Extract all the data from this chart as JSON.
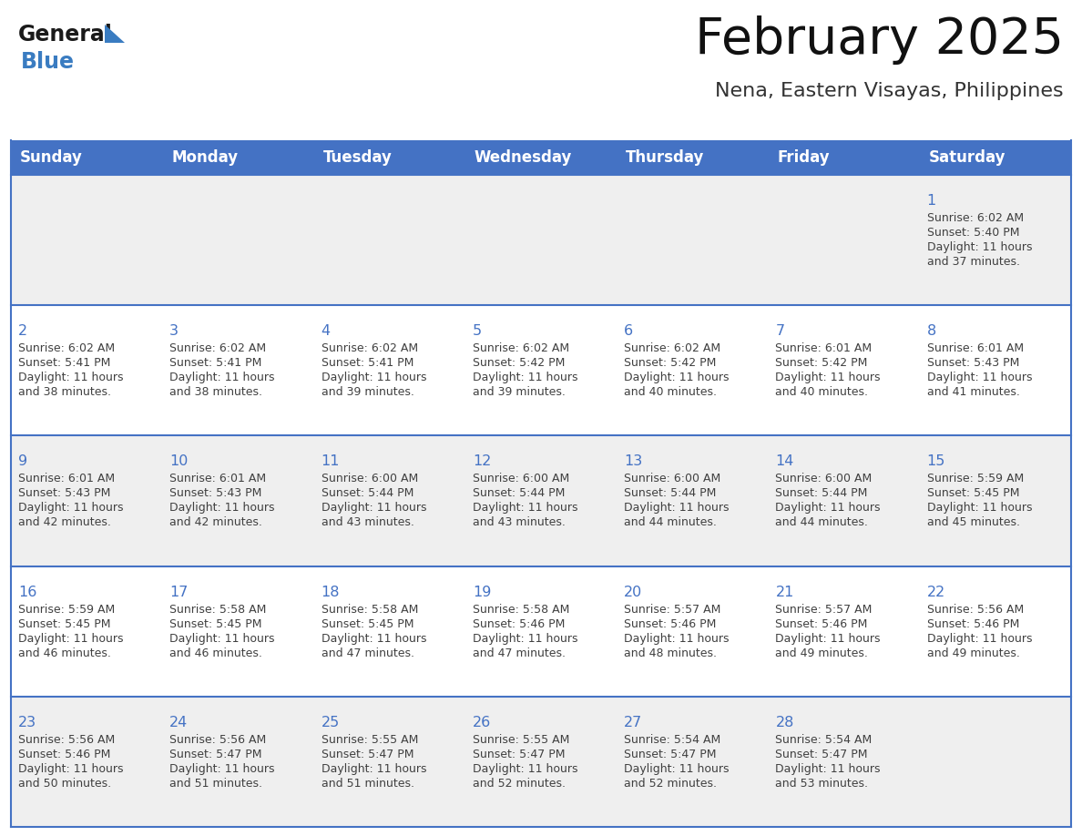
{
  "title": "February 2025",
  "subtitle": "Nena, Eastern Visayas, Philippines",
  "header_color": "#4472C4",
  "header_text_color": "#FFFFFF",
  "weekdays": [
    "Sunday",
    "Monday",
    "Tuesday",
    "Wednesday",
    "Thursday",
    "Friday",
    "Saturday"
  ],
  "background_color": "#FFFFFF",
  "cell_bg_even": "#EFEFEF",
  "cell_bg_odd": "#FFFFFF",
  "grid_line_color": "#4472C4",
  "day_number_color": "#4472C4",
  "text_color": "#404040",
  "logo_general_color": "#1A1A1A",
  "logo_blue_color": "#3A7CC1",
  "days": [
    {
      "day": 1,
      "col": 6,
      "row": 0,
      "sunrise": "6:02 AM",
      "sunset": "5:40 PM",
      "daylight_line1": "Daylight: 11 hours",
      "daylight_line2": "and 37 minutes."
    },
    {
      "day": 2,
      "col": 0,
      "row": 1,
      "sunrise": "6:02 AM",
      "sunset": "5:41 PM",
      "daylight_line1": "Daylight: 11 hours",
      "daylight_line2": "and 38 minutes."
    },
    {
      "day": 3,
      "col": 1,
      "row": 1,
      "sunrise": "6:02 AM",
      "sunset": "5:41 PM",
      "daylight_line1": "Daylight: 11 hours",
      "daylight_line2": "and 38 minutes."
    },
    {
      "day": 4,
      "col": 2,
      "row": 1,
      "sunrise": "6:02 AM",
      "sunset": "5:41 PM",
      "daylight_line1": "Daylight: 11 hours",
      "daylight_line2": "and 39 minutes."
    },
    {
      "day": 5,
      "col": 3,
      "row": 1,
      "sunrise": "6:02 AM",
      "sunset": "5:42 PM",
      "daylight_line1": "Daylight: 11 hours",
      "daylight_line2": "and 39 minutes."
    },
    {
      "day": 6,
      "col": 4,
      "row": 1,
      "sunrise": "6:02 AM",
      "sunset": "5:42 PM",
      "daylight_line1": "Daylight: 11 hours",
      "daylight_line2": "and 40 minutes."
    },
    {
      "day": 7,
      "col": 5,
      "row": 1,
      "sunrise": "6:01 AM",
      "sunset": "5:42 PM",
      "daylight_line1": "Daylight: 11 hours",
      "daylight_line2": "and 40 minutes."
    },
    {
      "day": 8,
      "col": 6,
      "row": 1,
      "sunrise": "6:01 AM",
      "sunset": "5:43 PM",
      "daylight_line1": "Daylight: 11 hours",
      "daylight_line2": "and 41 minutes."
    },
    {
      "day": 9,
      "col": 0,
      "row": 2,
      "sunrise": "6:01 AM",
      "sunset": "5:43 PM",
      "daylight_line1": "Daylight: 11 hours",
      "daylight_line2": "and 42 minutes."
    },
    {
      "day": 10,
      "col": 1,
      "row": 2,
      "sunrise": "6:01 AM",
      "sunset": "5:43 PM",
      "daylight_line1": "Daylight: 11 hours",
      "daylight_line2": "and 42 minutes."
    },
    {
      "day": 11,
      "col": 2,
      "row": 2,
      "sunrise": "6:00 AM",
      "sunset": "5:44 PM",
      "daylight_line1": "Daylight: 11 hours",
      "daylight_line2": "and 43 minutes."
    },
    {
      "day": 12,
      "col": 3,
      "row": 2,
      "sunrise": "6:00 AM",
      "sunset": "5:44 PM",
      "daylight_line1": "Daylight: 11 hours",
      "daylight_line2": "and 43 minutes."
    },
    {
      "day": 13,
      "col": 4,
      "row": 2,
      "sunrise": "6:00 AM",
      "sunset": "5:44 PM",
      "daylight_line1": "Daylight: 11 hours",
      "daylight_line2": "and 44 minutes."
    },
    {
      "day": 14,
      "col": 5,
      "row": 2,
      "sunrise": "6:00 AM",
      "sunset": "5:44 PM",
      "daylight_line1": "Daylight: 11 hours",
      "daylight_line2": "and 44 minutes."
    },
    {
      "day": 15,
      "col": 6,
      "row": 2,
      "sunrise": "5:59 AM",
      "sunset": "5:45 PM",
      "daylight_line1": "Daylight: 11 hours",
      "daylight_line2": "and 45 minutes."
    },
    {
      "day": 16,
      "col": 0,
      "row": 3,
      "sunrise": "5:59 AM",
      "sunset": "5:45 PM",
      "daylight_line1": "Daylight: 11 hours",
      "daylight_line2": "and 46 minutes."
    },
    {
      "day": 17,
      "col": 1,
      "row": 3,
      "sunrise": "5:58 AM",
      "sunset": "5:45 PM",
      "daylight_line1": "Daylight: 11 hours",
      "daylight_line2": "and 46 minutes."
    },
    {
      "day": 18,
      "col": 2,
      "row": 3,
      "sunrise": "5:58 AM",
      "sunset": "5:45 PM",
      "daylight_line1": "Daylight: 11 hours",
      "daylight_line2": "and 47 minutes."
    },
    {
      "day": 19,
      "col": 3,
      "row": 3,
      "sunrise": "5:58 AM",
      "sunset": "5:46 PM",
      "daylight_line1": "Daylight: 11 hours",
      "daylight_line2": "and 47 minutes."
    },
    {
      "day": 20,
      "col": 4,
      "row": 3,
      "sunrise": "5:57 AM",
      "sunset": "5:46 PM",
      "daylight_line1": "Daylight: 11 hours",
      "daylight_line2": "and 48 minutes."
    },
    {
      "day": 21,
      "col": 5,
      "row": 3,
      "sunrise": "5:57 AM",
      "sunset": "5:46 PM",
      "daylight_line1": "Daylight: 11 hours",
      "daylight_line2": "and 49 minutes."
    },
    {
      "day": 22,
      "col": 6,
      "row": 3,
      "sunrise": "5:56 AM",
      "sunset": "5:46 PM",
      "daylight_line1": "Daylight: 11 hours",
      "daylight_line2": "and 49 minutes."
    },
    {
      "day": 23,
      "col": 0,
      "row": 4,
      "sunrise": "5:56 AM",
      "sunset": "5:46 PM",
      "daylight_line1": "Daylight: 11 hours",
      "daylight_line2": "and 50 minutes."
    },
    {
      "day": 24,
      "col": 1,
      "row": 4,
      "sunrise": "5:56 AM",
      "sunset": "5:47 PM",
      "daylight_line1": "Daylight: 11 hours",
      "daylight_line2": "and 51 minutes."
    },
    {
      "day": 25,
      "col": 2,
      "row": 4,
      "sunrise": "5:55 AM",
      "sunset": "5:47 PM",
      "daylight_line1": "Daylight: 11 hours",
      "daylight_line2": "and 51 minutes."
    },
    {
      "day": 26,
      "col": 3,
      "row": 4,
      "sunrise": "5:55 AM",
      "sunset": "5:47 PM",
      "daylight_line1": "Daylight: 11 hours",
      "daylight_line2": "and 52 minutes."
    },
    {
      "day": 27,
      "col": 4,
      "row": 4,
      "sunrise": "5:54 AM",
      "sunset": "5:47 PM",
      "daylight_line1": "Daylight: 11 hours",
      "daylight_line2": "and 52 minutes."
    },
    {
      "day": 28,
      "col": 5,
      "row": 4,
      "sunrise": "5:54 AM",
      "sunset": "5:47 PM",
      "daylight_line1": "Daylight: 11 hours",
      "daylight_line2": "and 53 minutes."
    }
  ],
  "num_rows": 5,
  "num_cols": 7
}
